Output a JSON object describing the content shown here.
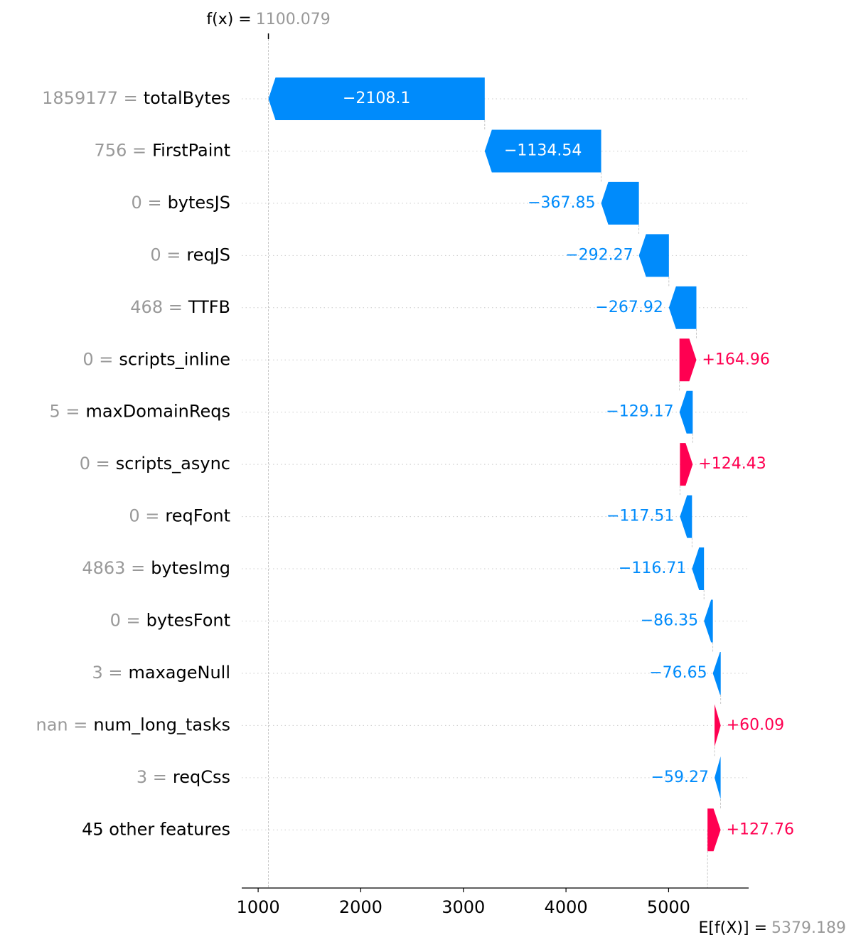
{
  "chart_data": {
    "type": "waterfall",
    "fx_label": "f(x) =",
    "fx": 1100.079,
    "base_label": "E[f(X)] =",
    "base_value": 5379.189,
    "features": [
      "totalBytes",
      "FirstPaint",
      "bytesJS",
      "reqJS",
      "TTFB",
      "scripts_inline",
      "maxDomainReqs",
      "scripts_async",
      "reqFont",
      "bytesImg",
      "bytesFont",
      "maxageNull",
      "num_long_tasks",
      "reqCss",
      "45 other features"
    ],
    "feature_values": [
      "1859177 =",
      "756 =",
      "0 =",
      "0 =",
      "468 =",
      "0 =",
      "5 =",
      "0 =",
      "0 =",
      "4863 =",
      "0 =",
      "3 =",
      "nan =",
      "3 =",
      null
    ],
    "values": [
      -2108.1,
      -1134.54,
      -367.85,
      -292.27,
      -267.92,
      164.96,
      -129.17,
      124.43,
      -117.51,
      -116.71,
      -86.35,
      -76.65,
      60.09,
      -59.27,
      127.76
    ],
    "value_labels": [
      "−2108.1",
      "−1134.54",
      "−367.85",
      "−292.27",
      "−267.92",
      "+164.96",
      "−129.17",
      "+124.43",
      "−117.51",
      "−116.71",
      "−86.35",
      "−76.65",
      "+60.09",
      "−59.27",
      "+127.76"
    ],
    "positive_color": "#ff0051",
    "negative_color": "#008bfb",
    "xlim": [
      840,
      5780
    ],
    "xticks": [
      1000,
      2000,
      3000,
      4000,
      5000
    ]
  }
}
